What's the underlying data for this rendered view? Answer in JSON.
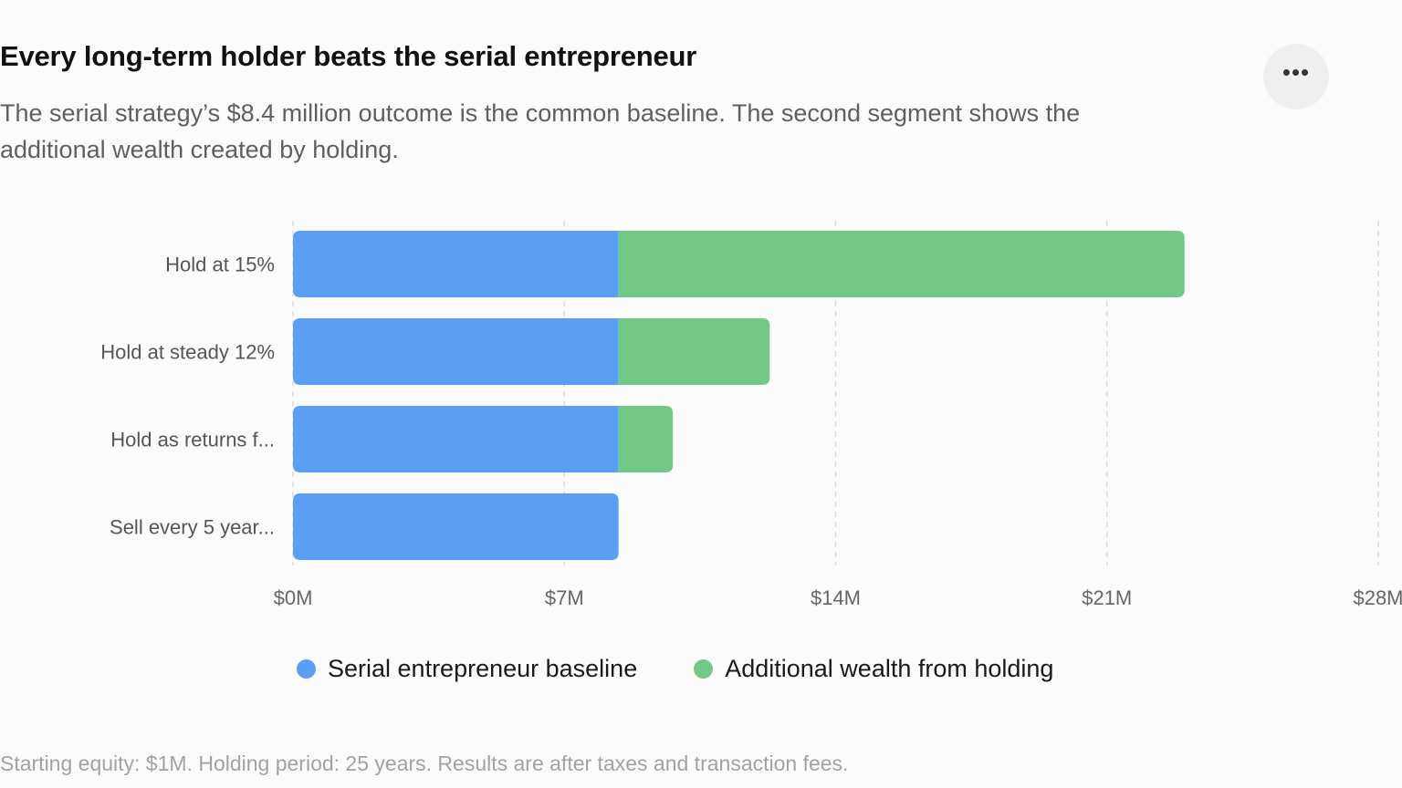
{
  "title": "Every long-term holder beats the serial entrepreneur",
  "subtitle": "The serial strategy’s $8.4 million outcome is the common baseline. The second segment shows the additional wealth created by holding.",
  "menu": {
    "more_label": "•••",
    "icon": "more-horizontal-icon"
  },
  "colors": {
    "baseline": "#5b9ef6",
    "additional": "#72c987",
    "grid": "#dcdcdc"
  },
  "chart_data": {
    "type": "bar",
    "orientation": "horizontal",
    "stacked": true,
    "categories": [
      "Hold at 15%",
      "Hold at steady 12%",
      "Hold as returns f...",
      "Sell every 5 year..."
    ],
    "series": [
      {
        "name": "Serial entrepreneur baseline",
        "values": [
          8.4,
          8.4,
          8.4,
          8.4
        ]
      },
      {
        "name": "Additional wealth from holding",
        "values": [
          14.6,
          3.9,
          1.4,
          0
        ]
      }
    ],
    "xlim": [
      0,
      28
    ],
    "x_ticks": [
      0,
      7,
      14,
      21,
      28
    ],
    "x_tick_labels": [
      "$0M",
      "$7M",
      "$14M",
      "$21M",
      "$28M"
    ],
    "grid": true,
    "legend_position": "bottom"
  },
  "footnote": "Starting equity: $1M. Holding period: 25 years. Results are after taxes and transaction fees."
}
